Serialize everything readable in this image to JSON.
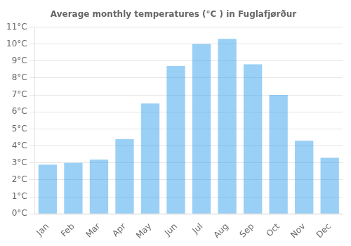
{
  "chart_data": {
    "type": "bar",
    "title": "Average monthly temperatures (°C ) in Fuglafjørður",
    "categories": [
      "Jan",
      "Feb",
      "Mar",
      "Apr",
      "May",
      "Jun",
      "Jul",
      "Aug",
      "Sep",
      "Oct",
      "Nov",
      "Dec"
    ],
    "values": [
      2.9,
      3.0,
      3.2,
      4.4,
      6.5,
      8.7,
      10.0,
      10.3,
      8.8,
      7.0,
      4.3,
      3.3
    ],
    "ylim": [
      0,
      11
    ],
    "yticks": [
      {
        "value": 0,
        "label": "0°C"
      },
      {
        "value": 1,
        "label": "1°C"
      },
      {
        "value": 2,
        "label": "2°C"
      },
      {
        "value": 3,
        "label": "3°C"
      },
      {
        "value": 4,
        "label": "4°C"
      },
      {
        "value": 5,
        "label": "5°C"
      },
      {
        "value": 6,
        "label": "6°C"
      },
      {
        "value": 7,
        "label": "7°C"
      },
      {
        "value": 8,
        "label": "8°C"
      },
      {
        "value": 9,
        "label": "9°C"
      },
      {
        "value": 10,
        "label": "10°C"
      },
      {
        "value": 11,
        "label": "11°C"
      }
    ],
    "grid": true
  }
}
